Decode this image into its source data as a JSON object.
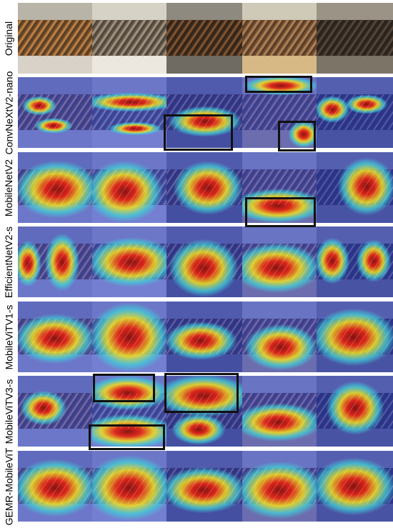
{
  "rows": [
    {
      "label": "Original",
      "kind": "original"
    },
    {
      "label": "ConvNeXtV2-nano",
      "kind": "heat"
    },
    {
      "label": "MobileNetV2",
      "kind": "heat"
    },
    {
      "label": "EfficientNetV2-s",
      "kind": "heat"
    },
    {
      "label": "MobileViTV1-s",
      "kind": "heat"
    },
    {
      "label": "MobileViTV3-s",
      "kind": "heat"
    },
    {
      "label": "GEMR-MobileViT",
      "kind": "heat"
    }
  ],
  "colors": {
    "heat_background": "#2a3fc9",
    "heat_low": "#3fd0d8",
    "heat_mid": "#f5e11a",
    "heat_high": "#e8220f",
    "heat_peak": "#8a0f0a",
    "highlight_box": "#111111"
  }
}
